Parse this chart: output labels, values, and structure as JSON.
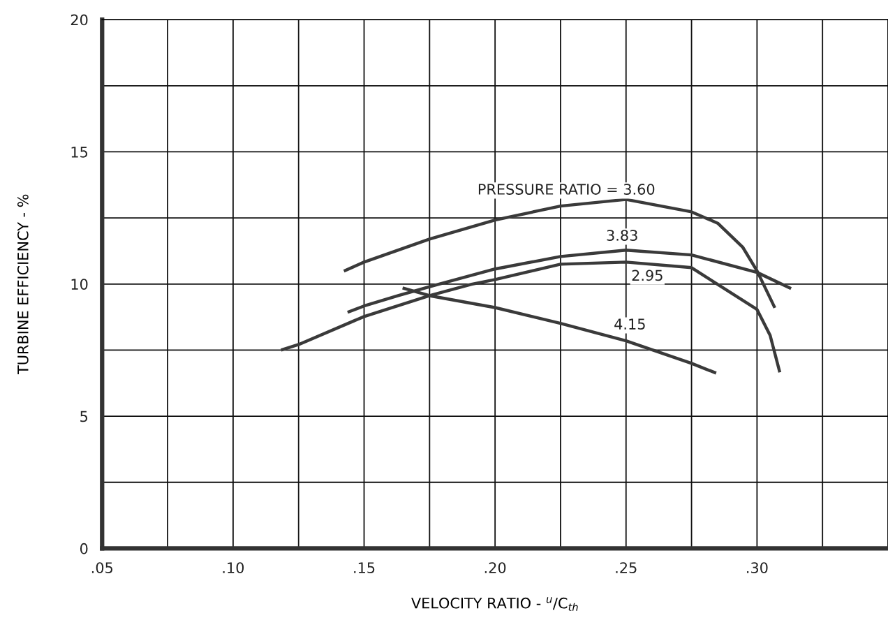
{
  "chart_data": {
    "type": "line",
    "xlabel": "VELOCITY RATIO - $^{u}$/C$_{th}$",
    "ylabel": "TURBINE EFFICIENCY - %",
    "xlim": [
      0.05,
      0.35
    ],
    "ylim": [
      0,
      20
    ],
    "xticks": [
      {
        "value": 0.05,
        "label": ".05"
      },
      {
        "value": 0.075,
        "label": null
      },
      {
        "value": 0.1,
        "label": ".10"
      },
      {
        "value": 0.125,
        "label": null
      },
      {
        "value": 0.15,
        "label": ".15"
      },
      {
        "value": 0.175,
        "label": null
      },
      {
        "value": 0.2,
        "label": ".20"
      },
      {
        "value": 0.225,
        "label": null
      },
      {
        "value": 0.25,
        "label": ".25"
      },
      {
        "value": 0.275,
        "label": null
      },
      {
        "value": 0.3,
        "label": ".30"
      },
      {
        "value": 0.325,
        "label": null
      }
    ],
    "yticks": [
      0,
      {
        "value": 2.5,
        "label": null
      },
      5,
      {
        "value": 7.5,
        "label": null
      },
      10,
      {
        "value": 12.5,
        "label": null
      },
      15,
      {
        "value": 17.5,
        "label": null
      },
      20
    ],
    "grid": true,
    "marker": "none",
    "line_style": "solid",
    "series": [
      {
        "name": "PRESSURE RATIO = 3.60",
        "color": "#3a3a3a",
        "x": [
          0.1423,
          0.15,
          0.175,
          0.2,
          0.225,
          0.25,
          0.275,
          0.285,
          0.2945,
          0.3,
          0.3068
        ],
        "values": [
          10.49,
          10.83,
          11.7,
          12.42,
          12.95,
          13.2,
          12.73,
          12.3,
          11.4,
          10.5,
          9.1
        ]
      },
      {
        "name": "3.83",
        "color": "#3a3a3a",
        "x": [
          0.1437,
          0.15,
          0.163,
          0.175,
          0.2,
          0.225,
          0.25,
          0.275,
          0.3,
          0.313
        ],
        "values": [
          8.93,
          9.17,
          9.56,
          9.9,
          10.57,
          11.04,
          11.28,
          11.1,
          10.44,
          9.83
        ]
      },
      {
        "name": "2.95",
        "color": "#3a3a3a",
        "x": [
          0.1183,
          0.125,
          0.15,
          0.175,
          0.191,
          0.2,
          0.225,
          0.25,
          0.275,
          0.3,
          0.305,
          0.3087
        ],
        "values": [
          7.5,
          7.71,
          8.77,
          9.56,
          9.99,
          10.17,
          10.75,
          10.83,
          10.62,
          9.04,
          8.06,
          6.66
        ]
      },
      {
        "name": "4.15",
        "color": "#3a3a3a",
        "x": [
          0.1647,
          0.175,
          0.2,
          0.225,
          0.25,
          0.275,
          0.2844
        ],
        "values": [
          9.85,
          9.56,
          9.11,
          8.51,
          7.85,
          7.0,
          6.63
        ]
      }
    ]
  }
}
